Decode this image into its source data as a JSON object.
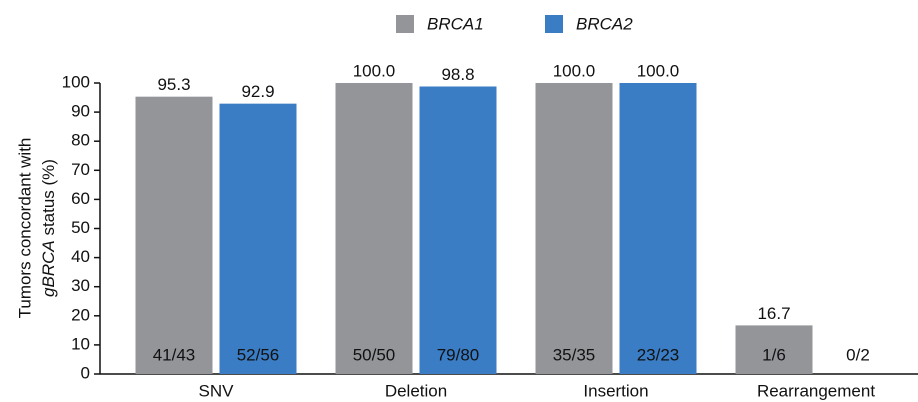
{
  "chart_data": {
    "type": "bar",
    "ylabel": {
      "line1": "Tumors concordant with",
      "line2_italic": "gBRCA",
      "line2_rest": " status (%)"
    },
    "categories": [
      "SNV",
      "Deletion",
      "Insertion",
      "Rearrangement"
    ],
    "series": [
      {
        "name": "BRCA1",
        "color": "#939598",
        "values": [
          95.3,
          100,
          100,
          16.7
        ],
        "value_labels": [
          "95.3",
          "100.0",
          "100.0",
          "16.7"
        ],
        "counts": [
          "41/43",
          "50/50",
          "35/35",
          "1/6"
        ]
      },
      {
        "name": "BRCA2",
        "color": "#3a7dc4",
        "values": [
          92.9,
          98.8,
          100,
          0
        ],
        "value_labels": [
          "92.9",
          "98.8",
          "100.0",
          null
        ],
        "counts": [
          "52/56",
          "79/80",
          "23/23",
          "0/2"
        ]
      }
    ],
    "ylim": [
      0,
      100
    ],
    "yticks": [
      0,
      10,
      20,
      30,
      40,
      50,
      60,
      70,
      80,
      90,
      100
    ]
  }
}
